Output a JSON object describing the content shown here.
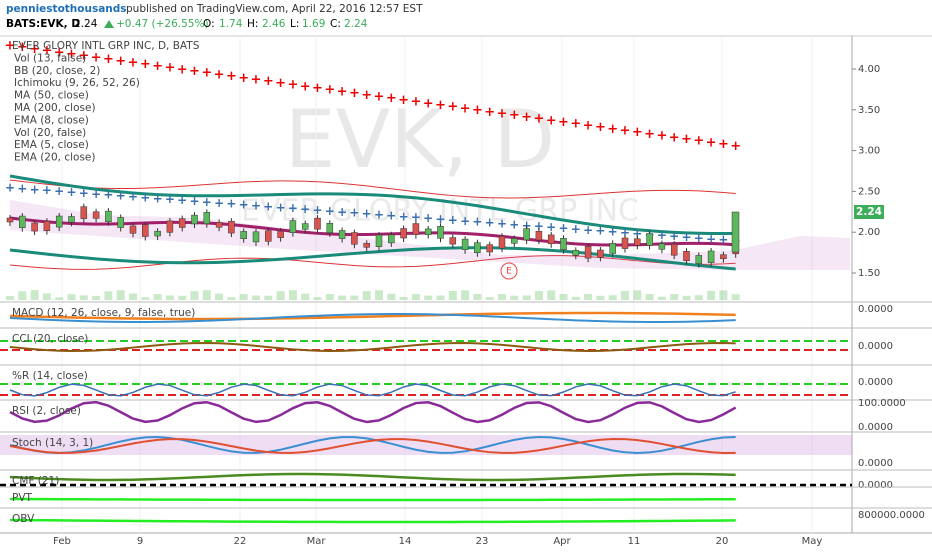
{
  "header": {
    "user": "penniestothousands",
    "published": "published on TradingView.com, April 22, 2016 12:57 EST"
  },
  "symbol_bar": {
    "symbol": "BATS:EVK, D",
    "price": "2.24",
    "change": "+0.47 (+26.55%)",
    "open_label": "O:",
    "open": "1.74",
    "high_label": "H:",
    "high": "2.46",
    "low_label": "L:",
    "low": "1.69",
    "close_label": "C:",
    "close": "2.24"
  },
  "watermark": {
    "symbol": "EVK, D",
    "company": "EVER GLORY INTL GRP INC"
  },
  "main_legend": [
    "EVER GLORY INTL GRP INC, D, BATS",
    "Vol (13, false)",
    "BB (20, close, 2)",
    "Ichimoku (9, 26, 52, 26)",
    "MA (50, close)",
    "MA (200, close)",
    "EMA (8, close)",
    "Vol (20, false)",
    "EMA (5, close)",
    "EMA (20, close)"
  ],
  "price_axis": [
    "4.00",
    "3.50",
    "3.00",
    "2.50",
    "2.00",
    "1.50"
  ],
  "event_marker": "E",
  "panels": [
    {
      "label": "MACD (12, 26, close, 9, false, true)",
      "axis": [
        "0.0000"
      ]
    },
    {
      "label": "CCI (20, close)",
      "axis": [
        "0.0000"
      ]
    },
    {
      "label": "%R (14, close)",
      "axis": [
        "0.0000"
      ]
    },
    {
      "label": "RSI (2, close)",
      "axis": [
        "100.0000",
        "0.0000"
      ]
    },
    {
      "label": "Stoch (14, 3, 1)",
      "axis": [
        "0.0000"
      ]
    },
    {
      "label": "CMF (21)",
      "axis": [
        "0.0000"
      ]
    },
    {
      "label": "PVT",
      "axis": []
    },
    {
      "label": "OBV",
      "axis": [
        "800000.0000"
      ]
    }
  ],
  "time_axis": [
    "Feb",
    "9",
    "22",
    "Mar",
    "14",
    "23",
    "Apr",
    "11",
    "20",
    "May"
  ]
}
